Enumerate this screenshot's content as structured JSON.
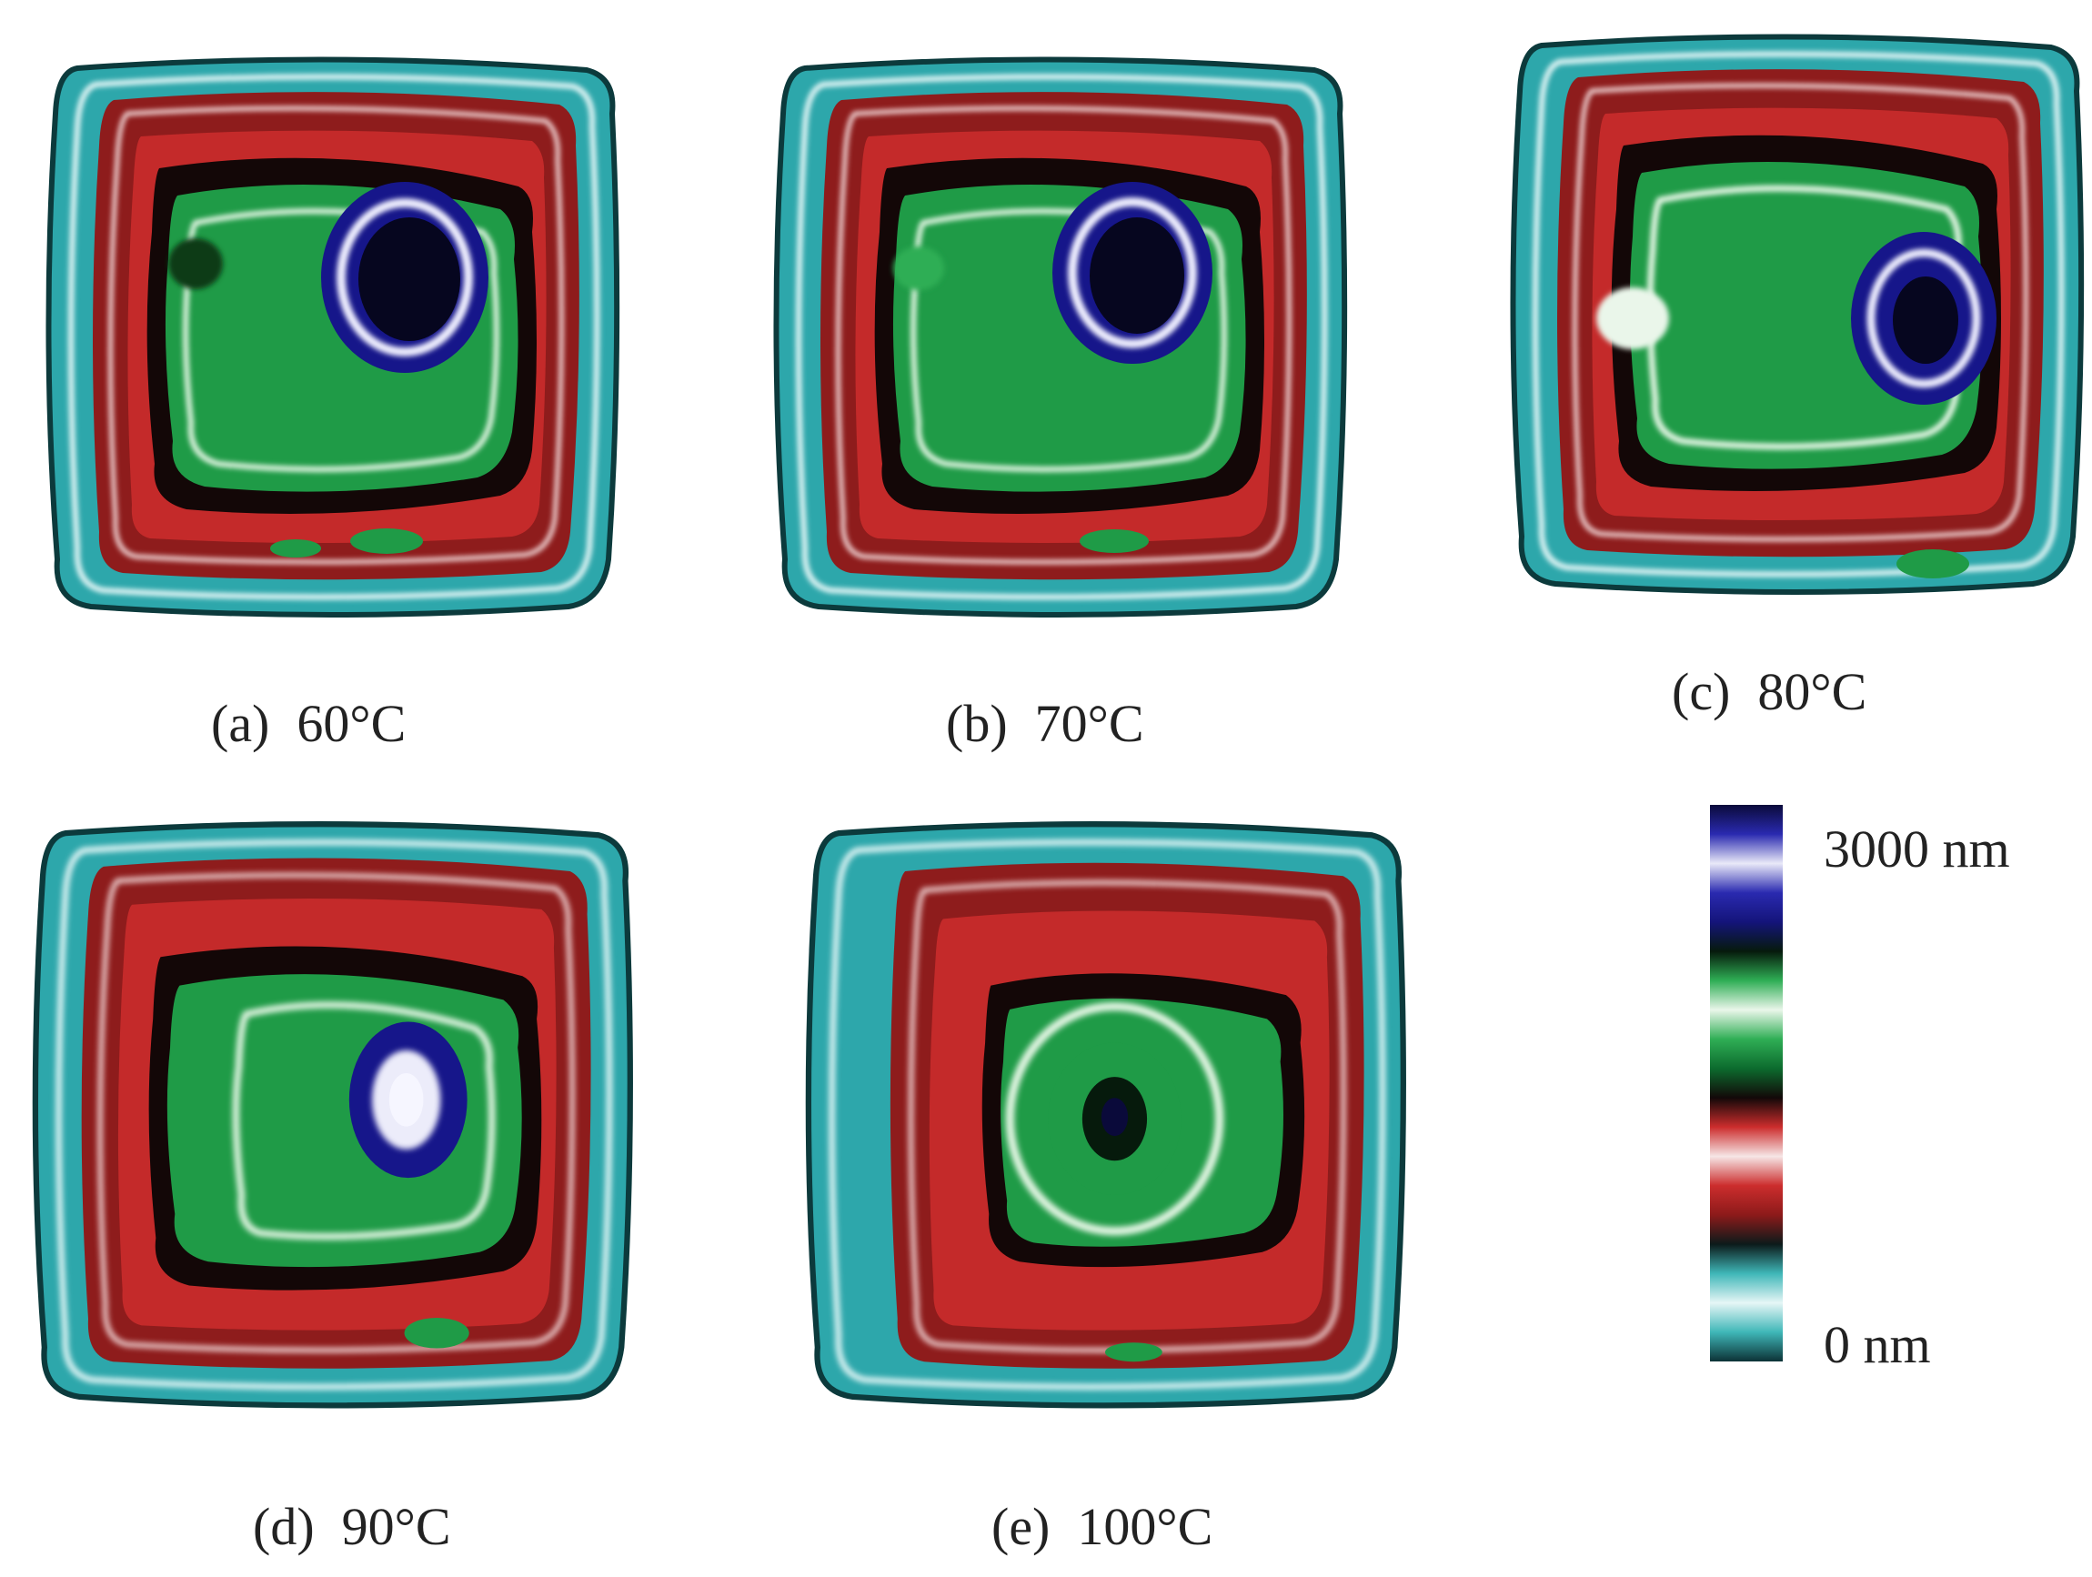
{
  "panels": [
    {
      "id": "a",
      "letter": "(a)",
      "temp": "60°C"
    },
    {
      "id": "b",
      "letter": "(b)",
      "temp": "70°C"
    },
    {
      "id": "c",
      "letter": "(c)",
      "temp": "80°C"
    },
    {
      "id": "d",
      "letter": "(d)",
      "temp": "90°C"
    },
    {
      "id": "e",
      "letter": "(e)",
      "temp": "100°C"
    }
  ],
  "colorbar": {
    "max_label": "3000 nm",
    "min_label": "0 nm",
    "colors": [
      "#0c3236",
      "#3fb7b8",
      "#e6f6f6",
      "#3fb7b8",
      "#0c1a1a",
      "#8c1a1a",
      "#cc2d2d",
      "#f6e6e6",
      "#cc2d2d",
      "#120808",
      "#0c6b2e",
      "#2fae55",
      "#eaf6ea",
      "#2fae55",
      "#061a0c",
      "#14147a",
      "#2a2ab0",
      "#e9e9f8",
      "#2a2ab0",
      "#0a0a3a"
    ]
  }
}
